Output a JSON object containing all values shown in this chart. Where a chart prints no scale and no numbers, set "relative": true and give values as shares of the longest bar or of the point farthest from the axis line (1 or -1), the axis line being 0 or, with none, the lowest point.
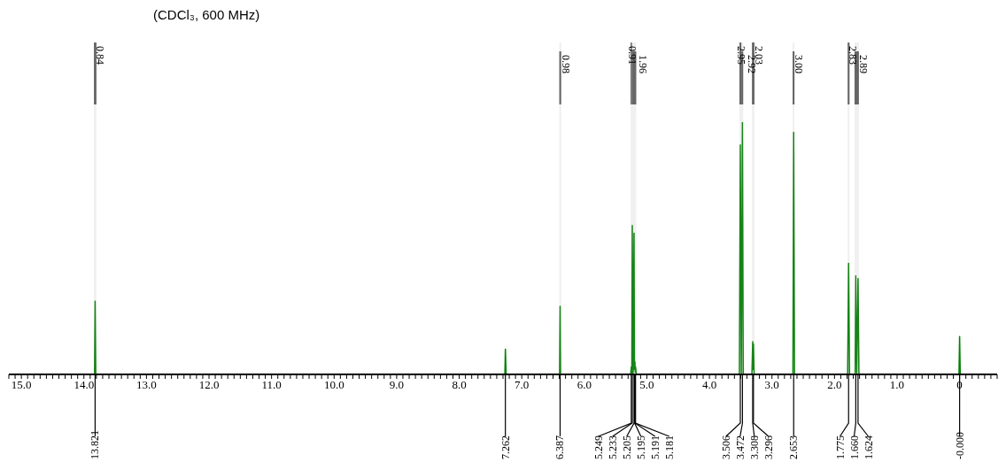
{
  "chart_data": {
    "type": "line",
    "title": "(CDCl₃, 600 MHz)",
    "relative": true,
    "marker": "none",
    "xlim": [
      15.2,
      -0.6
    ],
    "xticks": [
      {
        "value": 15.2,
        "label": null
      },
      {
        "value": 15.1,
        "label": null
      },
      {
        "value": 15,
        "label": "15.0"
      },
      {
        "value": 14.9,
        "label": null
      },
      {
        "value": 14.8,
        "label": null
      },
      {
        "value": 14.7,
        "label": null
      },
      {
        "value": 14.6,
        "label": null
      },
      {
        "value": 14.5,
        "label": null
      },
      {
        "value": 14.4,
        "label": null
      },
      {
        "value": 14.3,
        "label": null
      },
      {
        "value": 14.2,
        "label": null
      },
      {
        "value": 14.1,
        "label": null
      },
      {
        "value": 14,
        "label": "14.0"
      },
      {
        "value": 13.9,
        "label": null
      },
      {
        "value": 13.8,
        "label": null
      },
      {
        "value": 13.7,
        "label": null
      },
      {
        "value": 13.6,
        "label": null
      },
      {
        "value": 13.5,
        "label": null
      },
      {
        "value": 13.4,
        "label": null
      },
      {
        "value": 13.3,
        "label": null
      },
      {
        "value": 13.2,
        "label": null
      },
      {
        "value": 13.1,
        "label": null
      },
      {
        "value": 13,
        "label": "13.0"
      },
      {
        "value": 12.9,
        "label": null
      },
      {
        "value": 12.8,
        "label": null
      },
      {
        "value": 12.7,
        "label": null
      },
      {
        "value": 12.6,
        "label": null
      },
      {
        "value": 12.5,
        "label": null
      },
      {
        "value": 12.4,
        "label": null
      },
      {
        "value": 12.3,
        "label": null
      },
      {
        "value": 12.2,
        "label": null
      },
      {
        "value": 12.1,
        "label": null
      },
      {
        "value": 12,
        "label": "12.0"
      },
      {
        "value": 11.9,
        "label": null
      },
      {
        "value": 11.8,
        "label": null
      },
      {
        "value": 11.7,
        "label": null
      },
      {
        "value": 11.6,
        "label": null
      },
      {
        "value": 11.5,
        "label": null
      },
      {
        "value": 11.4,
        "label": null
      },
      {
        "value": 11.3,
        "label": null
      },
      {
        "value": 11.2,
        "label": null
      },
      {
        "value": 11.1,
        "label": null
      },
      {
        "value": 11,
        "label": "11.0"
      },
      {
        "value": 10.9,
        "label": null
      },
      {
        "value": 10.8,
        "label": null
      },
      {
        "value": 10.7,
        "label": null
      },
      {
        "value": 10.6,
        "label": null
      },
      {
        "value": 10.5,
        "label": null
      },
      {
        "value": 10.4,
        "label": null
      },
      {
        "value": 10.3,
        "label": null
      },
      {
        "value": 10.2,
        "label": null
      },
      {
        "value": 10.1,
        "label": null
      },
      {
        "value": 10,
        "label": "10.0"
      },
      {
        "value": 9.9,
        "label": null
      },
      {
        "value": 9.8,
        "label": null
      },
      {
        "value": 9.7,
        "label": null
      },
      {
        "value": 9.6,
        "label": null
      },
      {
        "value": 9.5,
        "label": null
      },
      {
        "value": 9.4,
        "label": null
      },
      {
        "value": 9.3,
        "label": null
      },
      {
        "value": 9.2,
        "label": null
      },
      {
        "value": 9.1,
        "label": null
      },
      {
        "value": 9,
        "label": "9.0"
      },
      {
        "value": 8.9,
        "label": null
      },
      {
        "value": 8.8,
        "label": null
      },
      {
        "value": 8.7,
        "label": null
      },
      {
        "value": 8.6,
        "label": null
      },
      {
        "value": 8.5,
        "label": null
      },
      {
        "value": 8.4,
        "label": null
      },
      {
        "value": 8.3,
        "label": null
      },
      {
        "value": 8.2,
        "label": null
      },
      {
        "value": 8.1,
        "label": null
      },
      {
        "value": 8,
        "label": "8.0"
      },
      {
        "value": 7.9,
        "label": null
      },
      {
        "value": 7.8,
        "label": null
      },
      {
        "value": 7.7,
        "label": null
      },
      {
        "value": 7.6,
        "label": null
      },
      {
        "value": 7.5,
        "label": null
      },
      {
        "value": 7.4,
        "label": null
      },
      {
        "value": 7.3,
        "label": null
      },
      {
        "value": 7.2,
        "label": null
      },
      {
        "value": 7.1,
        "label": null
      },
      {
        "value": 7,
        "label": "7.0"
      },
      {
        "value": 6.9,
        "label": null
      },
      {
        "value": 6.8,
        "label": null
      },
      {
        "value": 6.7,
        "label": null
      },
      {
        "value": 6.6,
        "label": null
      },
      {
        "value": 6.5,
        "label": null
      },
      {
        "value": 6.4,
        "label": null
      },
      {
        "value": 6.3,
        "label": null
      },
      {
        "value": 6.2,
        "label": null
      },
      {
        "value": 6.1,
        "label": null
      },
      {
        "value": 6,
        "label": "6.0"
      },
      {
        "value": 5.9,
        "label": null
      },
      {
        "value": 5.8,
        "label": null
      },
      {
        "value": 5.7,
        "label": null
      },
      {
        "value": 5.6,
        "label": null
      },
      {
        "value": 5.5,
        "label": null
      },
      {
        "value": 5.4,
        "label": null
      },
      {
        "value": 5.3,
        "label": null
      },
      {
        "value": 5.2,
        "label": null
      },
      {
        "value": 5.1,
        "label": null
      },
      {
        "value": 5,
        "label": "5.0"
      },
      {
        "value": 4.9,
        "label": null
      },
      {
        "value": 4.8,
        "label": null
      },
      {
        "value": 4.7,
        "label": null
      },
      {
        "value": 4.6,
        "label": null
      },
      {
        "value": 4.5,
        "label": null
      },
      {
        "value": 4.4,
        "label": null
      },
      {
        "value": 4.3,
        "label": null
      },
      {
        "value": 4.2,
        "label": null
      },
      {
        "value": 4.1,
        "label": null
      },
      {
        "value": 4,
        "label": "4.0"
      },
      {
        "value": 3.9,
        "label": null
      },
      {
        "value": 3.8,
        "label": null
      },
      {
        "value": 3.7,
        "label": null
      },
      {
        "value": 3.6,
        "label": null
      },
      {
        "value": 3.5,
        "label": null
      },
      {
        "value": 3.4,
        "label": null
      },
      {
        "value": 3.3,
        "label": null
      },
      {
        "value": 3.2,
        "label": null
      },
      {
        "value": 3.1,
        "label": null
      },
      {
        "value": 3,
        "label": "3.0"
      },
      {
        "value": 2.9,
        "label": null
      },
      {
        "value": 2.8,
        "label": null
      },
      {
        "value": 2.7,
        "label": null
      },
      {
        "value": 2.6,
        "label": null
      },
      {
        "value": 2.5,
        "label": null
      },
      {
        "value": 2.4,
        "label": null
      },
      {
        "value": 2.3,
        "label": null
      },
      {
        "value": 2.2,
        "label": null
      },
      {
        "value": 2.1,
        "label": null
      },
      {
        "value": 2,
        "label": "2.0"
      },
      {
        "value": 1.9,
        "label": null
      },
      {
        "value": 1.8,
        "label": null
      },
      {
        "value": 1.7,
        "label": null
      },
      {
        "value": 1.6,
        "label": null
      },
      {
        "value": 1.5,
        "label": null
      },
      {
        "value": 1.4,
        "label": null
      },
      {
        "value": 1.3,
        "label": null
      },
      {
        "value": 1.2,
        "label": null
      },
      {
        "value": 1.1,
        "label": null
      },
      {
        "value": 1,
        "label": "1.0"
      },
      {
        "value": 0.9,
        "label": null
      },
      {
        "value": 0.8,
        "label": null
      },
      {
        "value": 0.7,
        "label": null
      },
      {
        "value": 0.6,
        "label": null
      },
      {
        "value": 0.5,
        "label": null
      },
      {
        "value": 0.4,
        "label": null
      },
      {
        "value": 0.3,
        "label": null
      },
      {
        "value": 0.2,
        "label": null
      },
      {
        "value": 0.1,
        "label": null
      },
      0,
      {
        "value": -0.1,
        "label": null
      },
      {
        "value": -0.2,
        "label": null
      },
      {
        "value": -0.3,
        "label": null
      },
      {
        "value": -0.4,
        "label": null
      },
      {
        "value": -0.5,
        "label": null
      },
      {
        "value": -0.6,
        "label": null
      }
    ],
    "series": [
      {
        "color": "#008000",
        "x": [
          15.2,
          13.83,
          13.821,
          13.81,
          7.27,
          7.262,
          7.25,
          6.395,
          6.387,
          6.38,
          5.26,
          5.249,
          5.24,
          5.233,
          5.22,
          5.205,
          5.199,
          5.195,
          5.193,
          5.191,
          5.186,
          5.181,
          5.17,
          3.52,
          3.506,
          3.49,
          3.472,
          3.46,
          3.32,
          3.308,
          3.302,
          3.296,
          3.285,
          2.665,
          2.653,
          2.64,
          1.79,
          1.775,
          1.76,
          1.67,
          1.66,
          1.645,
          1.624,
          1.61,
          0.01,
          0,
          -0.01,
          -0.6
        ],
        "values": [
          0,
          0,
          0.29,
          0,
          0,
          0.1,
          0,
          0,
          0.27,
          0,
          0,
          0.03,
          0,
          0.59,
          0,
          0.56,
          0.02,
          0.05,
          0.02,
          0.05,
          0.01,
          0.03,
          0,
          0,
          0.91,
          0,
          1,
          0,
          0,
          0.13,
          0.02,
          0.12,
          0,
          0,
          0.96,
          0,
          0,
          0.44,
          0,
          0,
          0.39,
          0,
          0.38,
          0,
          0,
          0.15,
          0,
          0
        ]
      }
    ],
    "bands": [
      {
        "axis": "x",
        "from": 13.84,
        "to": 13.8,
        "label": "0.84"
      },
      {
        "axis": "x",
        "from": 6.4,
        "to": 6.37,
        "label": "0.98"
      },
      {
        "axis": "x",
        "from": 5.26,
        "to": 5.24,
        "label": "0.91"
      },
      {
        "axis": "x",
        "from": 5.24,
        "to": 5.17,
        "label": "1.96"
      },
      {
        "axis": "x",
        "from": 3.52,
        "to": 3.49,
        "label": "2.95"
      },
      {
        "axis": "x",
        "from": 3.49,
        "to": 3.46,
        "label": "2.92"
      },
      {
        "axis": "x",
        "from": 3.32,
        "to": 3.28,
        "label": "2.03"
      },
      {
        "axis": "x",
        "from": 2.67,
        "to": 2.64,
        "label": "3.00"
      },
      {
        "axis": "x",
        "from": 1.79,
        "to": 1.76,
        "label": "2.83"
      },
      {
        "axis": "x",
        "from": 1.68,
        "to": 1.61,
        "label": "2.89"
      }
    ],
    "annotations": [
      {
        "text": "13.821",
        "x": 13.821,
        "y": 0
      },
      {
        "text": "7.262",
        "x": 7.262,
        "y": 0
      },
      {
        "text": "6.387",
        "x": 6.387,
        "y": 0
      },
      {
        "text": "5.249",
        "x": 5.249,
        "y": 0
      },
      {
        "text": "5.233",
        "x": 5.233,
        "y": 0
      },
      {
        "text": "5.205",
        "x": 5.205,
        "y": 0
      },
      {
        "text": "5.195",
        "x": 5.195,
        "y": 0
      },
      {
        "text": "5.191",
        "x": 5.191,
        "y": 0
      },
      {
        "text": "5.181",
        "x": 5.181,
        "y": 0
      },
      {
        "text": "3.506",
        "x": 3.506,
        "y": 0
      },
      {
        "text": "3.472",
        "x": 3.472,
        "y": 0
      },
      {
        "text": "3.308",
        "x": 3.308,
        "y": 0
      },
      {
        "text": "3.296",
        "x": 3.296,
        "y": 0
      },
      {
        "text": "2.653",
        "x": 2.653,
        "y": 0
      },
      {
        "text": "1.775",
        "x": 1.775,
        "y": 0
      },
      {
        "text": "1.660",
        "x": 1.66,
        "y": 0
      },
      {
        "text": "1.624",
        "x": 1.624,
        "y": 0
      },
      {
        "text": "-0.000",
        "x": 0,
        "y": 0
      }
    ]
  }
}
